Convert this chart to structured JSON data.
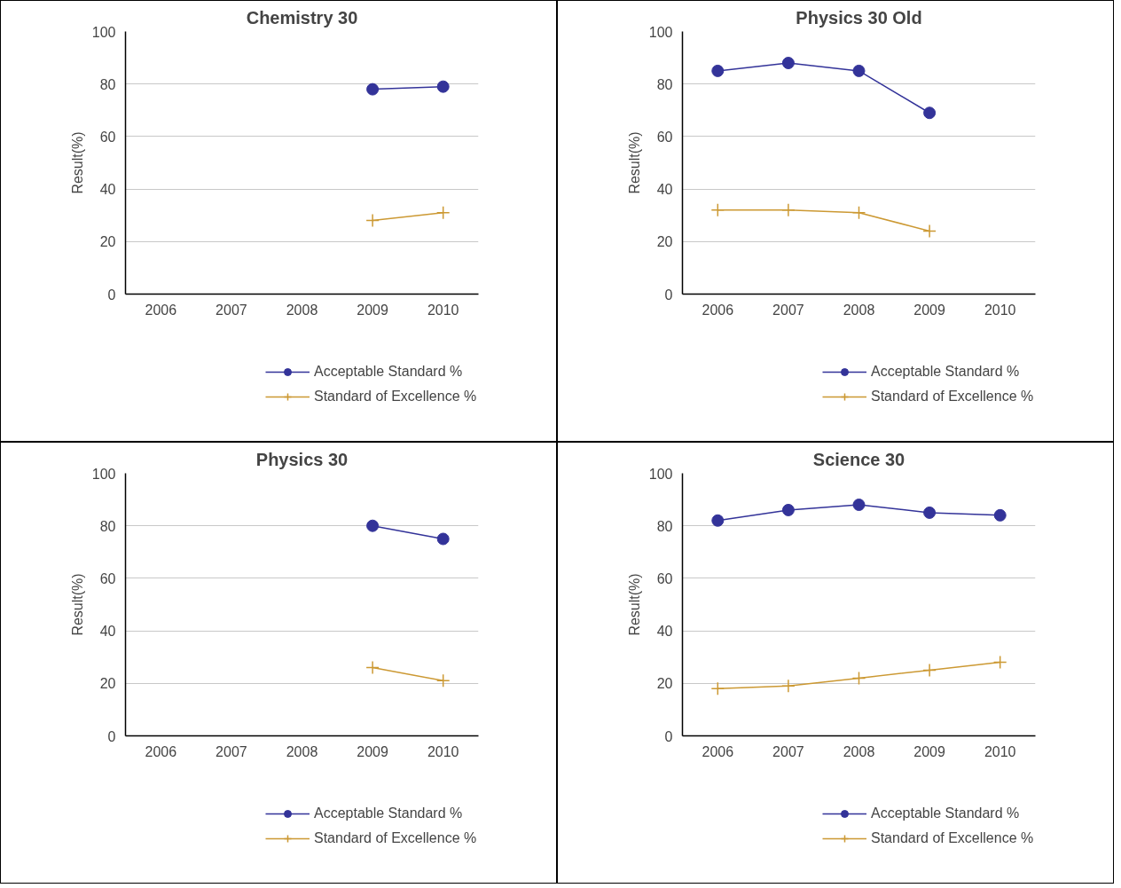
{
  "chart_data": [
    {
      "type": "line",
      "title": "Chemistry 30",
      "ylabel": "Result(%)",
      "categories": [
        "2006",
        "2007",
        "2008",
        "2009",
        "2010"
      ],
      "ylim": [
        0,
        100
      ],
      "yticks": [
        0,
        20,
        40,
        60,
        80,
        100
      ],
      "grid": "y",
      "legend": "bottom",
      "series": [
        {
          "name": "Acceptable Standard %",
          "color": "#333399",
          "marker": "circle",
          "values": [
            null,
            null,
            null,
            78,
            79
          ]
        },
        {
          "name": "Standard of Excellence %",
          "color": "#cc9933",
          "marker": "cross",
          "values": [
            null,
            null,
            null,
            28,
            31
          ]
        }
      ]
    },
    {
      "type": "line",
      "title": "Physics 30 Old",
      "ylabel": "Result(%)",
      "categories": [
        "2006",
        "2007",
        "2008",
        "2009",
        "2010"
      ],
      "ylim": [
        0,
        100
      ],
      "yticks": [
        0,
        20,
        40,
        60,
        80,
        100
      ],
      "grid": "y",
      "legend": "bottom",
      "series": [
        {
          "name": "Acceptable Standard %",
          "color": "#333399",
          "marker": "circle",
          "values": [
            85,
            88,
            85,
            69,
            null
          ]
        },
        {
          "name": "Standard of Excellence %",
          "color": "#cc9933",
          "marker": "cross",
          "values": [
            32,
            32,
            31,
            24,
            null
          ]
        }
      ]
    },
    {
      "type": "line",
      "title": "Physics 30",
      "ylabel": "Result(%)",
      "categories": [
        "2006",
        "2007",
        "2008",
        "2009",
        "2010"
      ],
      "ylim": [
        0,
        100
      ],
      "yticks": [
        0,
        20,
        40,
        60,
        80,
        100
      ],
      "grid": "y",
      "legend": "bottom",
      "series": [
        {
          "name": "Acceptable Standard %",
          "color": "#333399",
          "marker": "circle",
          "values": [
            null,
            null,
            null,
            80,
            75
          ]
        },
        {
          "name": "Standard of Excellence %",
          "color": "#cc9933",
          "marker": "cross",
          "values": [
            null,
            null,
            null,
            26,
            21
          ]
        }
      ]
    },
    {
      "type": "line",
      "title": "Science 30",
      "ylabel": "Result(%)",
      "categories": [
        "2006",
        "2007",
        "2008",
        "2009",
        "2010"
      ],
      "ylim": [
        0,
        100
      ],
      "yticks": [
        0,
        20,
        40,
        60,
        80,
        100
      ],
      "grid": "y",
      "legend": "bottom",
      "series": [
        {
          "name": "Acceptable Standard %",
          "color": "#333399",
          "marker": "circle",
          "values": [
            82,
            86,
            88,
            85,
            84
          ]
        },
        {
          "name": "Standard of Excellence %",
          "color": "#cc9933",
          "marker": "cross",
          "values": [
            18,
            19,
            22,
            25,
            28
          ]
        }
      ]
    }
  ]
}
